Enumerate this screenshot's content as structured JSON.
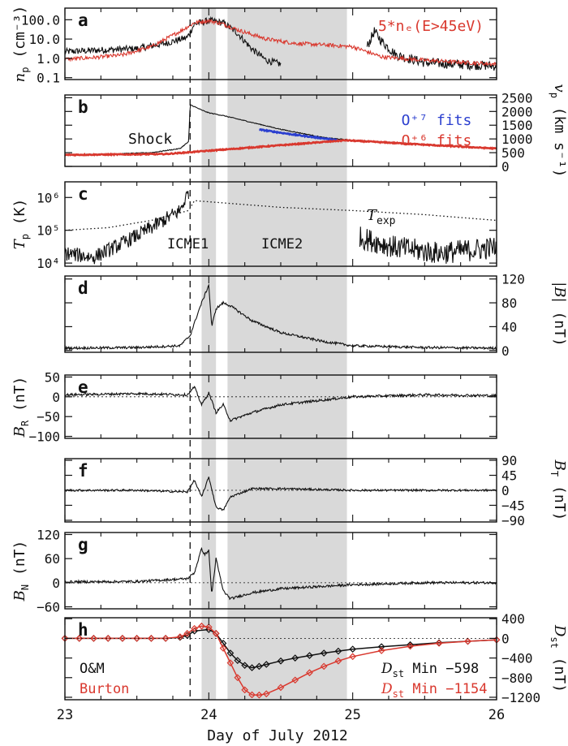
{
  "chart_data": {
    "type": "line",
    "xlabel": "Day of July 2012",
    "xlim": [
      23,
      26
    ],
    "xticks": [
      "23",
      "24",
      "25",
      "26"
    ],
    "colors": {
      "black": "#111111",
      "red": "#d9382e",
      "blue": "#2b3fcf",
      "shade": "#d9d9d9"
    },
    "shading": {
      "icme1": [
        23.95,
        24.05
      ],
      "icme2": [
        24.13,
        24.96
      ]
    },
    "shock_time": 23.87,
    "panels": [
      {
        "id": "a",
        "letter": "a",
        "ylabel": "n",
        "ysub": "p",
        "yunit": "(cm⁻³)",
        "scale": "log",
        "ylim": [
          0.08,
          400
        ],
        "yticks": [
          "100.0",
          "10.0",
          "1.0",
          "0.1"
        ],
        "yticks_val": [
          100,
          10,
          1,
          0.1
        ],
        "legend": "5*nₑ(E>45eV)",
        "series": [
          {
            "name": "n_p",
            "color": "#111111",
            "noise": 0.35,
            "x": [
              23.0,
              23.3,
              23.5,
              23.7,
              23.85,
              23.9,
              24.0,
              24.1,
              24.2,
              24.3,
              24.4,
              24.5
            ],
            "y": [
              2.2,
              2.8,
              3.2,
              6,
              12,
              60,
              90,
              70,
              20,
              3,
              0.8,
              0.5
            ]
          },
          {
            "name": "n_p late",
            "color": "#111111",
            "noise": 0.5,
            "x": [
              25.1,
              25.15,
              25.2,
              25.3,
              25.5,
              25.7,
              26.0
            ],
            "y": [
              4,
              25,
              8,
              1.5,
              0.6,
              0.5,
              0.4
            ]
          },
          {
            "name": "5*n_e(E>45eV)",
            "color": "#d9382e",
            "noise": 0.2,
            "x": [
              23.0,
              23.2,
              23.4,
              23.6,
              23.8,
              23.9,
              24.0,
              24.1,
              24.2,
              24.4,
              24.6,
              24.8,
              25.0,
              25.2,
              25.5,
              25.8,
              26.0
            ],
            "y": [
              0.9,
              1.1,
              1.5,
              4,
              25,
              70,
              90,
              60,
              30,
              10,
              6,
              5,
              4,
              1.2,
              0.8,
              0.6,
              0.5
            ]
          }
        ]
      },
      {
        "id": "b",
        "letter": "b",
        "ylabel": "v",
        "ysub": "p",
        "yunit": "(km s⁻¹)",
        "scale": "linear",
        "ylim": [
          0,
          2600
        ],
        "yticks": [
          "2500",
          "2000",
          "1500",
          "1000",
          "500",
          "0"
        ],
        "yticks_val": [
          2500,
          2000,
          1500,
          1000,
          500,
          0
        ],
        "annotation": "Shock",
        "fits": [
          "O⁺⁷ fits",
          "O⁺⁶ fits"
        ],
        "series": [
          {
            "name": "v_p",
            "color": "#111111",
            "noise": 15,
            "x": [
              23.0,
              23.3,
              23.6,
              23.8,
              23.86,
              23.87,
              23.95,
              24.0,
              24.1,
              24.3,
              24.5,
              24.8,
              25.0,
              25.5,
              26.0
            ],
            "y": [
              420,
              450,
              500,
              650,
              900,
              2250,
              2050,
              1950,
              1850,
              1600,
              1350,
              1050,
              950,
              800,
              650
            ]
          },
          {
            "name": "O7 fits",
            "color": "#2b3fcf",
            "noise": 20,
            "x": [
              24.35,
              24.6,
              24.9
            ],
            "y": [
              1340,
              1150,
              950
            ]
          },
          {
            "name": "O6 fits",
            "color": "#d9382e",
            "noise": 18,
            "x": [
              23.0,
              23.5,
              23.7,
              24.95,
              25.3,
              25.6,
              26.0
            ],
            "y": [
              420,
              440,
              450,
              950,
              850,
              760,
              650
            ]
          }
        ]
      },
      {
        "id": "c",
        "letter": "c",
        "ylabel": "T",
        "ysub": "p",
        "yunit": "(K)",
        "scale": "log",
        "ylim": [
          8000,
          3000000
        ],
        "yticks": [
          "10⁶",
          "10⁵",
          "10⁴"
        ],
        "yticks_val": [
          1000000,
          100000,
          10000
        ],
        "labels": [
          "ICME1",
          "ICME2"
        ],
        "texp": "T",
        "texp_sub": "exp",
        "series": [
          {
            "name": "T_p",
            "color": "#111111",
            "noise": 0.45,
            "x": [
              23.0,
              23.2,
              23.4,
              23.6,
              23.8,
              23.86
            ],
            "y": [
              20000,
              15000,
              40000,
              120000,
              400000,
              1500000
            ]
          },
          {
            "name": "T_p late",
            "color": "#111111",
            "noise": 0.7,
            "x": [
              25.05,
              25.3,
              25.6,
              26.0
            ],
            "y": [
              60000,
              30000,
              20000,
              30000
            ]
          },
          {
            "name": "T_exp",
            "color": "#111111",
            "noise": 0.0,
            "dotted": true,
            "x": [
              23.0,
              23.3,
              23.6,
              23.86,
              23.9,
              24.5,
              25.0,
              25.5,
              26.0
            ],
            "y": [
              100000,
              120000,
              200000,
              400000,
              800000,
              500000,
              400000,
              300000,
              200000
            ]
          }
        ]
      },
      {
        "id": "d",
        "letter": "d",
        "ylabel": "|B|",
        "ysub": "",
        "yunit": "(nT)",
        "scale": "linear",
        "ylim": [
          -3,
          125
        ],
        "yticks": [
          "120",
          "80",
          "40",
          "0"
        ],
        "yticks_val": [
          120,
          80,
          40,
          0
        ],
        "series": [
          {
            "name": "|B|",
            "color": "#111111",
            "noise": 2,
            "x": [
              23.0,
              23.5,
              23.8,
              23.87,
              23.92,
              23.95,
              24.0,
              24.02,
              24.05,
              24.1,
              24.15,
              24.3,
              24.5,
              24.8,
              25.0,
              25.5,
              26.0
            ],
            "y": [
              4,
              5,
              8,
              25,
              60,
              80,
              110,
              40,
              70,
              80,
              75,
              50,
              30,
              15,
              8,
              5,
              4
            ]
          }
        ]
      },
      {
        "id": "e",
        "letter": "e",
        "ylabel": "B",
        "ysub": "R",
        "yunit": "(nT)",
        "scale": "linear",
        "ylim": [
          -105,
          55
        ],
        "yticks": [
          "50",
          "0",
          "−50",
          "−100"
        ],
        "yticks_val": [
          50,
          0,
          -50,
          -100
        ],
        "zero_line": true,
        "series": [
          {
            "name": "B_R",
            "color": "#111111",
            "noise": 3,
            "x": [
              23.0,
              23.5,
              23.85,
              23.9,
              23.95,
              24.0,
              24.05,
              24.1,
              24.15,
              24.3,
              24.5,
              24.8,
              25.0,
              25.5,
              26.0
            ],
            "y": [
              5,
              8,
              5,
              25,
              -20,
              10,
              -40,
              -20,
              -60,
              -40,
              -20,
              -8,
              0,
              5,
              3
            ]
          }
        ]
      },
      {
        "id": "f",
        "letter": "f",
        "ylabel": "B",
        "ysub": "T",
        "yunit": "(nT)",
        "scale": "linear",
        "ylim": [
          -95,
          95
        ],
        "yticks": [
          "90",
          "45",
          "0",
          "−45",
          "−90"
        ],
        "yticks_val": [
          90,
          45,
          0,
          -45,
          -90
        ],
        "zero_line": true,
        "series": [
          {
            "name": "B_T",
            "color": "#111111",
            "noise": 3,
            "x": [
              23.0,
              23.5,
              23.85,
              23.9,
              23.95,
              24.0,
              24.05,
              24.1,
              24.15,
              24.3,
              24.5,
              25.0,
              25.5,
              26.0
            ],
            "y": [
              0,
              0,
              -5,
              30,
              -20,
              40,
              -50,
              -60,
              -20,
              5,
              5,
              0,
              0,
              0
            ]
          }
        ]
      },
      {
        "id": "g",
        "letter": "g",
        "ylabel": "B",
        "ysub": "N",
        "yunit": "(nT)",
        "scale": "linear",
        "ylim": [
          -65,
          125
        ],
        "yticks": [
          "120",
          "60",
          "0",
          "−60"
        ],
        "yticks_val": [
          120,
          60,
          0,
          -60
        ],
        "zero_line": true,
        "series": [
          {
            "name": "B_N",
            "color": "#111111",
            "noise": 3,
            "x": [
              23.0,
              23.5,
              23.85,
              23.9,
              23.95,
              23.97,
              24.0,
              24.02,
              24.05,
              24.1,
              24.15,
              24.3,
              24.5,
              25.0,
              25.5,
              26.0
            ],
            "y": [
              2,
              3,
              10,
              25,
              85,
              70,
              80,
              -30,
              60,
              -20,
              -40,
              -25,
              -15,
              -5,
              0,
              0
            ]
          }
        ]
      },
      {
        "id": "h",
        "letter": "h",
        "ylabel": "D",
        "ysub": "st",
        "yunit": "(nT)",
        "scale": "linear",
        "ylim": [
          -1250,
          420
        ],
        "yticks": [
          "400",
          "0",
          "−400",
          "−800",
          "−1200"
        ],
        "yticks_val": [
          400,
          0,
          -400,
          -800,
          -1200
        ],
        "zero_line": true,
        "legend_om": "O&M",
        "legend_burton": "Burton",
        "min_om_label": "Min  −598",
        "min_burton_label": "Min  −1154",
        "series": [
          {
            "name": "O&M",
            "color": "#111111",
            "markers": true,
            "x": [
              23.0,
              23.1,
              23.2,
              23.3,
              23.4,
              23.5,
              23.6,
              23.7,
              23.8,
              23.85,
              23.9,
              24.0,
              24.05,
              24.1,
              24.15,
              24.2,
              24.25,
              24.3,
              24.35,
              24.4,
              24.5,
              24.6,
              24.7,
              24.8,
              24.9,
              25.0,
              25.2,
              25.4,
              25.6,
              25.8,
              26.0
            ],
            "y": [
              0,
              0,
              0,
              0,
              0,
              0,
              0,
              0,
              20,
              60,
              150,
              180,
              100,
              -100,
              -300,
              -450,
              -550,
              -598,
              -570,
              -530,
              -460,
              -400,
              -350,
              -300,
              -260,
              -220,
              -170,
              -130,
              -90,
              -60,
              -30
            ]
          },
          {
            "name": "Burton",
            "color": "#d9382e",
            "markers": true,
            "x": [
              23.0,
              23.1,
              23.2,
              23.3,
              23.4,
              23.5,
              23.6,
              23.7,
              23.8,
              23.85,
              23.9,
              23.95,
              24.0,
              24.05,
              24.1,
              24.15,
              24.2,
              24.25,
              24.3,
              24.35,
              24.4,
              24.5,
              24.6,
              24.7,
              24.8,
              24.9,
              25.0,
              25.2,
              25.4,
              25.6,
              25.8,
              26.0
            ],
            "y": [
              0,
              0,
              0,
              0,
              0,
              0,
              0,
              0,
              30,
              100,
              200,
              250,
              230,
              100,
              -200,
              -500,
              -800,
              -1050,
              -1150,
              -1154,
              -1130,
              -1000,
              -850,
              -700,
              -570,
              -460,
              -370,
              -250,
              -160,
              -100,
              -60,
              -30
            ]
          }
        ]
      }
    ]
  }
}
